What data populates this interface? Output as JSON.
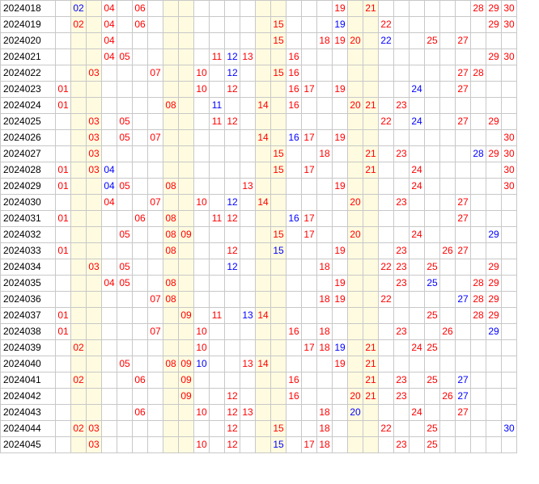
{
  "colors": {
    "red": "#ff0000",
    "blue": "#0000ff",
    "shade": "#fffbe0",
    "border": "#c8c8c8"
  },
  "shaded_columns": [
    2,
    3,
    8,
    9,
    14,
    15,
    20,
    21
  ],
  "rows": [
    {
      "period": "2024018",
      "cells": [
        [
          2,
          "b"
        ],
        [
          4,
          "r"
        ],
        [
          6,
          "r"
        ],
        [
          19,
          "r"
        ],
        [
          21,
          "r"
        ],
        [
          28,
          "r"
        ],
        [
          29,
          "r"
        ],
        [
          30,
          "r"
        ]
      ]
    },
    {
      "period": "2024019",
      "cells": [
        [
          2,
          "r"
        ],
        [
          4,
          "r"
        ],
        [
          6,
          "r"
        ],
        [
          15,
          "r"
        ],
        [
          19,
          "b"
        ],
        [
          22,
          "r"
        ],
        [
          29,
          "r"
        ],
        [
          30,
          "r"
        ]
      ]
    },
    {
      "period": "2024020",
      "cells": [
        [
          4,
          "r"
        ],
        [
          15,
          "r"
        ],
        [
          18,
          "r"
        ],
        [
          19,
          "r"
        ],
        [
          20,
          "r"
        ],
        [
          22,
          "b"
        ],
        [
          25,
          "r"
        ],
        [
          27,
          "r"
        ]
      ]
    },
    {
      "period": "2024021",
      "cells": [
        [
          4,
          "r"
        ],
        [
          5,
          "r"
        ],
        [
          11,
          "r"
        ],
        [
          12,
          "b"
        ],
        [
          13,
          "r"
        ],
        [
          16,
          "r"
        ],
        [
          29,
          "r"
        ],
        [
          30,
          "r"
        ]
      ]
    },
    {
      "period": "2024022",
      "cells": [
        [
          3,
          "r"
        ],
        [
          7,
          "r"
        ],
        [
          10,
          "r"
        ],
        [
          12,
          "b"
        ],
        [
          15,
          "r"
        ],
        [
          16,
          "r"
        ],
        [
          27,
          "r"
        ],
        [
          28,
          "r"
        ]
      ]
    },
    {
      "period": "2024023",
      "cells": [
        [
          1,
          "r"
        ],
        [
          10,
          "r"
        ],
        [
          12,
          "r"
        ],
        [
          16,
          "r"
        ],
        [
          17,
          "r"
        ],
        [
          19,
          "r"
        ],
        [
          24,
          "b"
        ],
        [
          27,
          "r"
        ]
      ]
    },
    {
      "period": "2024024",
      "cells": [
        [
          1,
          "r"
        ],
        [
          8,
          "r"
        ],
        [
          11,
          "b"
        ],
        [
          14,
          "r"
        ],
        [
          16,
          "r"
        ],
        [
          20,
          "r"
        ],
        [
          21,
          "r"
        ],
        [
          23,
          "r"
        ]
      ]
    },
    {
      "period": "2024025",
      "cells": [
        [
          3,
          "r"
        ],
        [
          5,
          "r"
        ],
        [
          11,
          "r"
        ],
        [
          12,
          "r"
        ],
        [
          22,
          "r"
        ],
        [
          24,
          "b"
        ],
        [
          27,
          "r"
        ],
        [
          29,
          "r"
        ]
      ]
    },
    {
      "period": "2024026",
      "cells": [
        [
          3,
          "r"
        ],
        [
          5,
          "r"
        ],
        [
          7,
          "r"
        ],
        [
          14,
          "r"
        ],
        [
          16,
          "b"
        ],
        [
          17,
          "r"
        ],
        [
          19,
          "r"
        ],
        [
          30,
          "r"
        ]
      ]
    },
    {
      "period": "2024027",
      "cells": [
        [
          3,
          "r"
        ],
        [
          15,
          "r"
        ],
        [
          18,
          "r"
        ],
        [
          21,
          "r"
        ],
        [
          23,
          "r"
        ],
        [
          28,
          "b"
        ],
        [
          29,
          "r"
        ],
        [
          30,
          "r"
        ]
      ]
    },
    {
      "period": "2024028",
      "cells": [
        [
          1,
          "r"
        ],
        [
          3,
          "r"
        ],
        [
          4,
          "b"
        ],
        [
          15,
          "r"
        ],
        [
          17,
          "r"
        ],
        [
          21,
          "r"
        ],
        [
          24,
          "r"
        ],
        [
          30,
          "r"
        ]
      ]
    },
    {
      "period": "2024029",
      "cells": [
        [
          1,
          "r"
        ],
        [
          4,
          "b"
        ],
        [
          5,
          "r"
        ],
        [
          8,
          "r"
        ],
        [
          13,
          "r"
        ],
        [
          19,
          "r"
        ],
        [
          24,
          "r"
        ],
        [
          30,
          "r"
        ]
      ]
    },
    {
      "period": "2024030",
      "cells": [
        [
          4,
          "r"
        ],
        [
          7,
          "r"
        ],
        [
          10,
          "r"
        ],
        [
          12,
          "b"
        ],
        [
          14,
          "r"
        ],
        [
          20,
          "r"
        ],
        [
          23,
          "r"
        ],
        [
          27,
          "r"
        ]
      ]
    },
    {
      "period": "2024031",
      "cells": [
        [
          1,
          "r"
        ],
        [
          6,
          "r"
        ],
        [
          8,
          "r"
        ],
        [
          11,
          "r"
        ],
        [
          12,
          "r"
        ],
        [
          16,
          "b"
        ],
        [
          17,
          "r"
        ],
        [
          27,
          "r"
        ]
      ]
    },
    {
      "period": "2024032",
      "cells": [
        [
          5,
          "r"
        ],
        [
          8,
          "r"
        ],
        [
          9,
          "r"
        ],
        [
          15,
          "r"
        ],
        [
          17,
          "r"
        ],
        [
          20,
          "r"
        ],
        [
          24,
          "r"
        ],
        [
          29,
          "b"
        ]
      ]
    },
    {
      "period": "2024033",
      "cells": [
        [
          1,
          "r"
        ],
        [
          8,
          "r"
        ],
        [
          12,
          "r"
        ],
        [
          15,
          "b"
        ],
        [
          19,
          "r"
        ],
        [
          23,
          "r"
        ],
        [
          26,
          "r"
        ],
        [
          27,
          "r"
        ]
      ]
    },
    {
      "period": "2024034",
      "cells": [
        [
          3,
          "r"
        ],
        [
          5,
          "r"
        ],
        [
          12,
          "b"
        ],
        [
          18,
          "r"
        ],
        [
          22,
          "r"
        ],
        [
          23,
          "r"
        ],
        [
          25,
          "r"
        ],
        [
          29,
          "r"
        ]
      ]
    },
    {
      "period": "2024035",
      "cells": [
        [
          4,
          "r"
        ],
        [
          5,
          "r"
        ],
        [
          8,
          "r"
        ],
        [
          19,
          "r"
        ],
        [
          23,
          "r"
        ],
        [
          25,
          "b"
        ],
        [
          28,
          "r"
        ],
        [
          29,
          "r"
        ]
      ]
    },
    {
      "period": "2024036",
      "cells": [
        [
          7,
          "r"
        ],
        [
          8,
          "r"
        ],
        [
          18,
          "r"
        ],
        [
          19,
          "r"
        ],
        [
          22,
          "r"
        ],
        [
          27,
          "b"
        ],
        [
          28,
          "r"
        ],
        [
          29,
          "r"
        ]
      ]
    },
    {
      "period": "2024037",
      "cells": [
        [
          1,
          "r"
        ],
        [
          9,
          "r"
        ],
        [
          11,
          "r"
        ],
        [
          13,
          "b"
        ],
        [
          14,
          "r"
        ],
        [
          25,
          "r"
        ],
        [
          28,
          "r"
        ],
        [
          29,
          "r"
        ]
      ]
    },
    {
      "period": "2024038",
      "cells": [
        [
          1,
          "r"
        ],
        [
          7,
          "r"
        ],
        [
          10,
          "r"
        ],
        [
          16,
          "r"
        ],
        [
          18,
          "r"
        ],
        [
          23,
          "r"
        ],
        [
          26,
          "r"
        ],
        [
          29,
          "b"
        ]
      ]
    },
    {
      "period": "2024039",
      "cells": [
        [
          2,
          "r"
        ],
        [
          10,
          "r"
        ],
        [
          17,
          "r"
        ],
        [
          18,
          "r"
        ],
        [
          19,
          "b"
        ],
        [
          21,
          "r"
        ],
        [
          24,
          "r"
        ],
        [
          25,
          "r"
        ]
      ]
    },
    {
      "period": "2024040",
      "cells": [
        [
          5,
          "r"
        ],
        [
          8,
          "r"
        ],
        [
          9,
          "r"
        ],
        [
          10,
          "b"
        ],
        [
          13,
          "r"
        ],
        [
          14,
          "r"
        ],
        [
          19,
          "r"
        ],
        [
          21,
          "r"
        ]
      ]
    },
    {
      "period": "2024041",
      "cells": [
        [
          2,
          "r"
        ],
        [
          6,
          "r"
        ],
        [
          9,
          "r"
        ],
        [
          16,
          "r"
        ],
        [
          21,
          "r"
        ],
        [
          23,
          "r"
        ],
        [
          25,
          "r"
        ],
        [
          27,
          "b"
        ]
      ]
    },
    {
      "period": "2024042",
      "cells": [
        [
          9,
          "r"
        ],
        [
          12,
          "r"
        ],
        [
          16,
          "r"
        ],
        [
          20,
          "r"
        ],
        [
          21,
          "r"
        ],
        [
          23,
          "r"
        ],
        [
          26,
          "r"
        ],
        [
          27,
          "b"
        ]
      ]
    },
    {
      "period": "2024043",
      "cells": [
        [
          6,
          "r"
        ],
        [
          10,
          "r"
        ],
        [
          12,
          "r"
        ],
        [
          13,
          "r"
        ],
        [
          18,
          "r"
        ],
        [
          20,
          "b"
        ],
        [
          24,
          "r"
        ],
        [
          27,
          "r"
        ]
      ]
    },
    {
      "period": "2024044",
      "cells": [
        [
          2,
          "r"
        ],
        [
          3,
          "r"
        ],
        [
          12,
          "r"
        ],
        [
          15,
          "r"
        ],
        [
          18,
          "r"
        ],
        [
          22,
          "r"
        ],
        [
          25,
          "r"
        ],
        [
          30,
          "b"
        ]
      ]
    },
    {
      "period": "2024045",
      "cells": [
        [
          3,
          "r"
        ],
        [
          10,
          "r"
        ],
        [
          12,
          "r"
        ],
        [
          15,
          "b"
        ],
        [
          17,
          "r"
        ],
        [
          18,
          "r"
        ],
        [
          23,
          "r"
        ],
        [
          25,
          "r"
        ]
      ]
    }
  ]
}
